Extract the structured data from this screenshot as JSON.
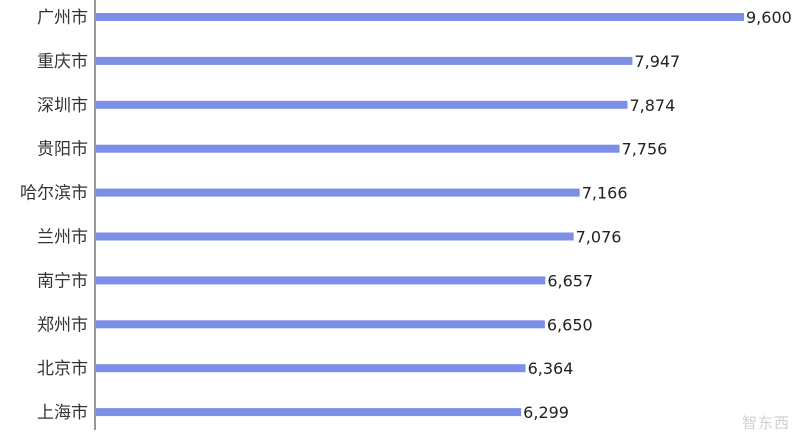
{
  "chart_data": {
    "type": "bar",
    "orientation": "horizontal",
    "categories": [
      "广州市",
      "重庆市",
      "深圳市",
      "贵阳市",
      "哈尔滨市",
      "兰州市",
      "南宁市",
      "郑州市",
      "北京市",
      "上海市"
    ],
    "values": [
      9600,
      7947,
      7874,
      7756,
      7166,
      7076,
      6657,
      6650,
      6364,
      6299
    ],
    "value_labels": [
      "9,600",
      "7,947",
      "7,874",
      "7,756",
      "7,166",
      "7,076",
      "6,657",
      "6,650",
      "6,364",
      "6,299"
    ],
    "title": "",
    "xlabel": "",
    "ylabel": "",
    "grid": false,
    "legend": "none",
    "bar_color": "#7b8fe6"
  },
  "watermark": {
    "text": "智东西",
    "color": "#cfcfcf"
  }
}
